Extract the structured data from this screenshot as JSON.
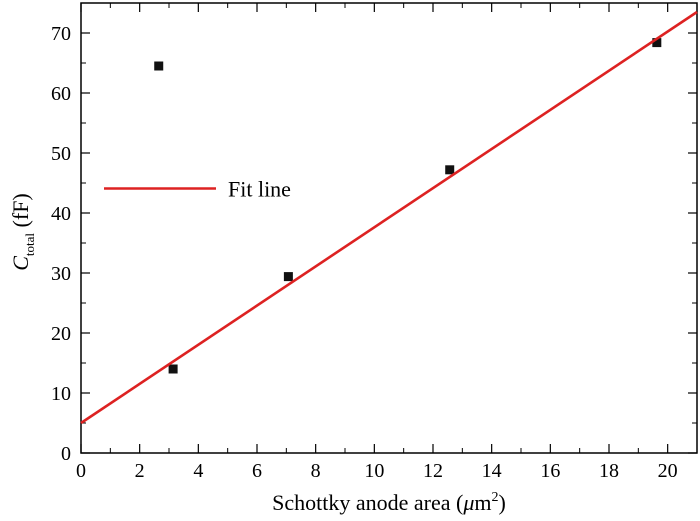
{
  "chart_data": {
    "type": "scatter",
    "title": "",
    "xlabel": "Schottky anode area (",
    "xlabel_unit_symbol": "μ",
    "xlabel_unit_rest": "m",
    "xlabel_superscript": "2",
    "xlabel_close": ")",
    "ylabel_main": "C",
    "ylabel_subscript": "total",
    "ylabel_unit": " (fF)",
    "xlim": [
      0,
      21
    ],
    "ylim": [
      0,
      75
    ],
    "xticks": [
      0,
      2,
      4,
      6,
      8,
      10,
      12,
      14,
      16,
      18,
      20
    ],
    "yticks": [
      0,
      10,
      20,
      30,
      40,
      50,
      60,
      70
    ],
    "grid": false,
    "series": [
      {
        "kind": "scatter",
        "marker": "square",
        "color": "#111111",
        "points": [
          {
            "x": 3.14,
            "y": 14.0
          },
          {
            "x": 7.07,
            "y": 29.4
          },
          {
            "x": 12.57,
            "y": 47.2
          },
          {
            "x": 19.63,
            "y": 68.4
          }
        ]
      },
      {
        "kind": "line",
        "name": "Fit line",
        "color": "#dd2222",
        "x": [
          0,
          21
        ],
        "y": [
          5.0,
          73.5
        ]
      }
    ],
    "legend": {
      "placement": "upper-left",
      "marker_kind": "scatter",
      "marker_color": "#111111",
      "marker_point": {
        "x": 2.65,
        "y": 64.5
      },
      "line_label": "Fit line"
    }
  }
}
